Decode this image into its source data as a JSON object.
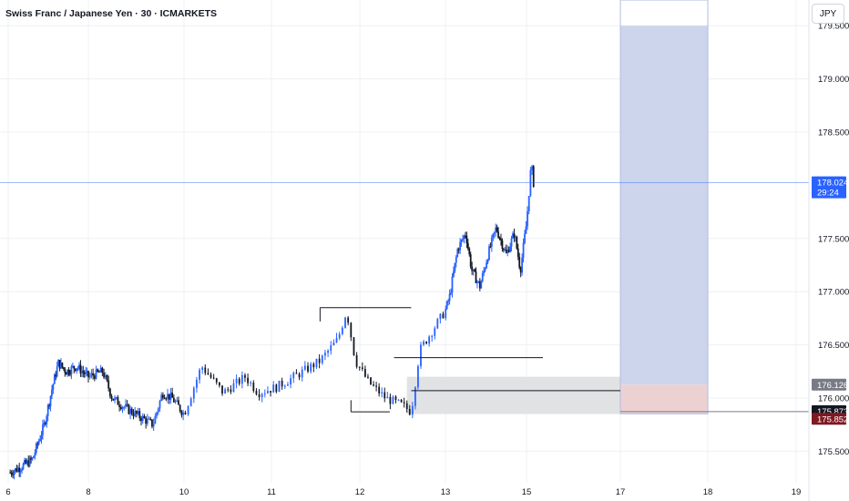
{
  "header": {
    "title": "Swiss Franc / Japanese Yen · 30 · ICMARKETS",
    "currency_button": "JPY"
  },
  "colors": {
    "up": "#2962ff",
    "down": "#131722",
    "grid": "#eef0f3",
    "target_zone": "#cdd5ec",
    "stop_zone": "#ecd1d3",
    "demand_zone": "#e1e2e4",
    "price_line": "#2962ff"
  },
  "chart_data": {
    "type": "candlestick",
    "ylim": [
      175.28,
      179.5
    ],
    "y_ticks": [
      "179.500",
      "179.000",
      "178.500",
      "177.500",
      "177.000",
      "176.500",
      "176.000",
      "175.500"
    ],
    "x_ticks": [
      {
        "label": "6",
        "day": 6
      },
      {
        "label": "8",
        "day": 8
      },
      {
        "label": "10",
        "day": 10
      },
      {
        "label": "11",
        "day": 11
      },
      {
        "label": "12",
        "day": 12
      },
      {
        "label": "13",
        "day": 13
      },
      {
        "label": "15",
        "day": 15
      },
      {
        "label": "17",
        "day": 17
      },
      {
        "label": "18",
        "day": 18
      },
      {
        "label": "19",
        "day": 19
      }
    ],
    "price_path": [
      [
        6.05,
        175.3
      ],
      [
        6.35,
        175.36
      ],
      [
        6.6,
        175.42
      ],
      [
        6.9,
        175.75
      ],
      [
        7.1,
        176.1
      ],
      [
        7.25,
        176.33
      ],
      [
        7.45,
        176.25
      ],
      [
        7.7,
        176.3
      ],
      [
        8.0,
        176.2
      ],
      [
        8.3,
        176.25
      ],
      [
        8.5,
        176.0
      ],
      [
        8.8,
        175.9
      ],
      [
        9.1,
        175.82
      ],
      [
        9.35,
        175.75
      ],
      [
        9.55,
        176.05
      ],
      [
        9.75,
        176.0
      ],
      [
        10.0,
        175.85
      ],
      [
        10.2,
        176.3
      ],
      [
        10.45,
        176.05
      ],
      [
        10.7,
        176.2
      ],
      [
        10.85,
        176.05
      ],
      [
        11.05,
        176.1
      ],
      [
        11.3,
        176.22
      ],
      [
        11.55,
        176.35
      ],
      [
        11.75,
        176.55
      ],
      [
        11.85,
        176.82
      ],
      [
        11.95,
        176.35
      ],
      [
        12.1,
        176.15
      ],
      [
        12.3,
        176.0
      ],
      [
        12.5,
        175.93
      ],
      [
        12.6,
        175.87
      ],
      [
        12.7,
        176.45
      ],
      [
        12.9,
        176.7
      ],
      [
        13.1,
        176.95
      ],
      [
        13.3,
        177.4
      ],
      [
        13.5,
        177.55
      ],
      [
        13.65,
        177.2
      ],
      [
        13.85,
        177.05
      ],
      [
        14.05,
        177.35
      ],
      [
        14.25,
        177.6
      ],
      [
        14.5,
        177.35
      ],
      [
        14.7,
        177.55
      ],
      [
        14.85,
        177.2
      ],
      [
        15.0,
        177.65
      ],
      [
        15.1,
        178.2
      ],
      [
        15.15,
        178.024
      ]
    ],
    "last_price": "178.024",
    "countdown": "29:24",
    "levels": {
      "target_top": 179.5,
      "entry": 176.126,
      "stop": 175.852,
      "demand_line": 175.873
    },
    "price_badges": [
      {
        "value": "178.024",
        "sub": "29:24",
        "color": "#2962ff"
      },
      {
        "value": "176.126",
        "color": "#787b86"
      },
      {
        "value": "175.873",
        "color": "#131722"
      },
      {
        "value": "175.852",
        "color": "#801922"
      }
    ],
    "lines": [
      {
        "from": [
          11.55,
          176.85
        ],
        "to": [
          12.6,
          176.85
        ]
      },
      {
        "from": [
          12.4,
          176.38
        ],
        "to": [
          15.35,
          176.38
        ]
      },
      {
        "from": [
          12.6,
          176.07
        ],
        "to": [
          17.0,
          176.07
        ]
      },
      {
        "from": [
          11.9,
          175.87
        ],
        "to": [
          12.35,
          175.87
        ]
      }
    ],
    "zones": [
      {
        "name": "demand-zone",
        "x0": 12.55,
        "x1": 17.0,
        "y0": 175.85,
        "y1": 176.2
      },
      {
        "name": "target-zone",
        "x0": 17.0,
        "x1": 18.0,
        "y0": 176.126,
        "y1": 179.5
      },
      {
        "name": "stop-zone",
        "x0": 17.0,
        "x1": 18.0,
        "y0": 175.852,
        "y1": 176.126
      }
    ]
  }
}
